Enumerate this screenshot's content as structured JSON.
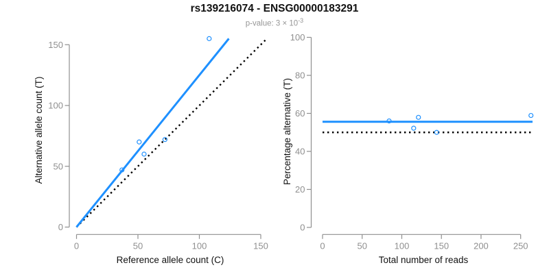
{
  "title": "rs139216074 - ENSG00000183291",
  "subtitle": {
    "text": "p-value: 3 × 10",
    "exponent": "-3"
  },
  "colors": {
    "accent_blue": "#1E90FF",
    "axis_gray": "#8f8f8f",
    "label_black": "#111111",
    "subtitle_gray": "#969696",
    "dotted_black": "#000000",
    "background": "#ffffff"
  },
  "chart_data": [
    {
      "type": "scatter",
      "panel": "left",
      "xlabel": "Reference allele count (C)",
      "ylabel": "Alternative allele count (T)",
      "xlim": [
        0,
        155
      ],
      "ylim": [
        0,
        157
      ],
      "xticks": [
        0,
        50,
        100,
        150
      ],
      "yticks": [
        0,
        50,
        100,
        150
      ],
      "grid": false,
      "points": [
        {
          "x": 37,
          "y": 47
        },
        {
          "x": 51,
          "y": 70
        },
        {
          "x": 55,
          "y": 60
        },
        {
          "x": 72,
          "y": 72
        },
        {
          "x": 108,
          "y": 155
        }
      ],
      "lines": [
        {
          "name": "identity-line",
          "x1": 0,
          "y1": 0,
          "x2": 154,
          "y2": 154,
          "style": "dotted",
          "color": "#000000"
        },
        {
          "name": "regression-line",
          "x1": 0,
          "y1": 0,
          "x2": 124,
          "y2": 155,
          "style": "solid",
          "color": "#1E90FF"
        }
      ]
    },
    {
      "type": "scatter",
      "panel": "right",
      "xlabel": "Total number of reads",
      "ylabel": "Percentage alternative (T)",
      "xlim": [
        0,
        265
      ],
      "ylim": [
        0,
        100
      ],
      "xticks": [
        0,
        50,
        100,
        150,
        200,
        250
      ],
      "yticks": [
        0,
        20,
        40,
        60,
        80,
        100
      ],
      "grid": false,
      "points": [
        {
          "x": 84,
          "y": 56
        },
        {
          "x": 115,
          "y": 52.2
        },
        {
          "x": 121,
          "y": 57.9
        },
        {
          "x": 144,
          "y": 50
        },
        {
          "x": 263,
          "y": 58.9
        }
      ],
      "lines": [
        {
          "name": "null-line",
          "x1": 0,
          "y1": 50,
          "x2": 265,
          "y2": 50,
          "style": "dotted",
          "color": "#000000"
        },
        {
          "name": "fit-line",
          "x1": 0,
          "y1": 55.6,
          "x2": 265,
          "y2": 55.6,
          "style": "solid",
          "color": "#1E90FF"
        }
      ]
    }
  ]
}
